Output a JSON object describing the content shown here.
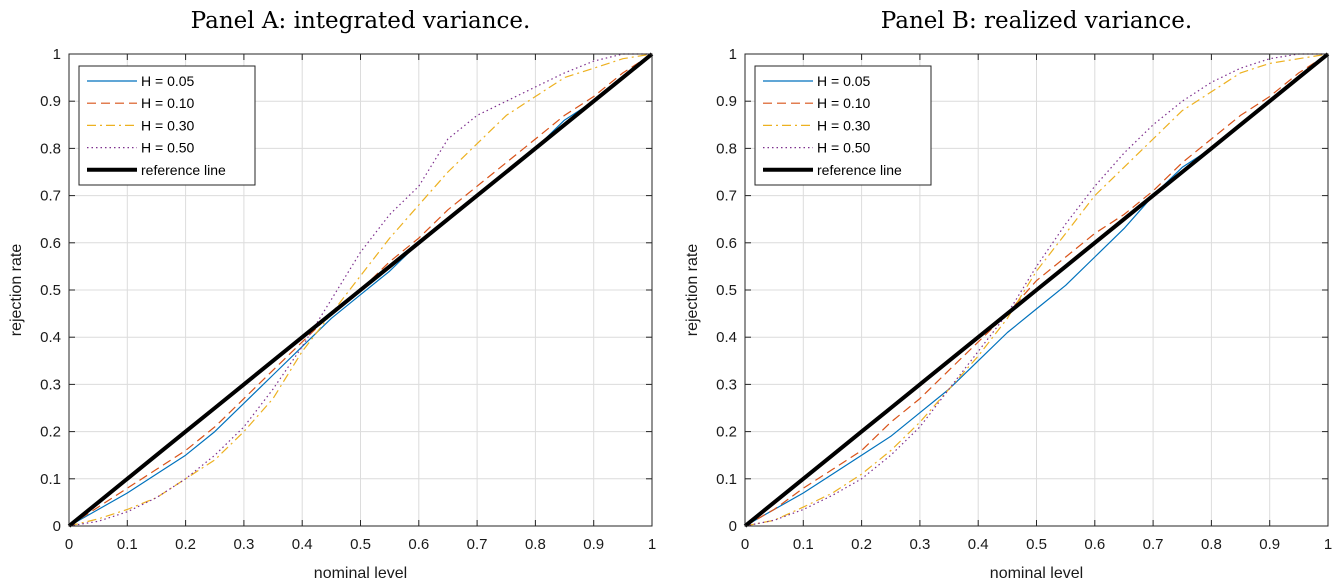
{
  "chart_data": [
    {
      "type": "line",
      "title": "Panel A: integrated variance.",
      "xlabel": "nominal level",
      "ylabel": "rejection rate",
      "xlim": [
        0,
        1
      ],
      "ylim": [
        0,
        1
      ],
      "x_ticks": [
        "0",
        "0.1",
        "0.2",
        "0.3",
        "0.4",
        "0.5",
        "0.6",
        "0.7",
        "0.8",
        "0.9",
        "1"
      ],
      "y_ticks": [
        "0",
        "0.1",
        "0.2",
        "0.3",
        "0.4",
        "0.5",
        "0.6",
        "0.7",
        "0.8",
        "0.9",
        "1"
      ],
      "grid": true,
      "legend": "top-left",
      "x": [
        0,
        0.05,
        0.1,
        0.15,
        0.2,
        0.25,
        0.3,
        0.35,
        0.4,
        0.45,
        0.5,
        0.55,
        0.6,
        0.65,
        0.7,
        0.75,
        0.8,
        0.85,
        0.9,
        0.95,
        1.0
      ],
      "series": [
        {
          "name": "H = 0.05",
          "color": "#0072BD",
          "dash": "solid",
          "values": [
            0,
            0.035,
            0.07,
            0.11,
            0.15,
            0.2,
            0.26,
            0.32,
            0.38,
            0.44,
            0.49,
            0.54,
            0.6,
            0.65,
            0.7,
            0.75,
            0.8,
            0.86,
            0.9,
            0.95,
            1.0
          ]
        },
        {
          "name": "H = 0.10",
          "color": "#D95319",
          "dash": "dashed",
          "values": [
            0,
            0.04,
            0.08,
            0.12,
            0.16,
            0.21,
            0.27,
            0.33,
            0.39,
            0.45,
            0.5,
            0.56,
            0.61,
            0.67,
            0.72,
            0.77,
            0.82,
            0.87,
            0.91,
            0.96,
            1.0
          ]
        },
        {
          "name": "H = 0.30",
          "color": "#EDB120",
          "dash": "dashdot",
          "values": [
            0,
            0.015,
            0.035,
            0.06,
            0.1,
            0.14,
            0.2,
            0.27,
            0.37,
            0.45,
            0.53,
            0.61,
            0.68,
            0.75,
            0.81,
            0.87,
            0.91,
            0.95,
            0.97,
            0.99,
            1.0
          ]
        },
        {
          "name": "H = 0.50",
          "color": "#7E2F8E",
          "dash": "dotted",
          "values": [
            0,
            0.01,
            0.03,
            0.06,
            0.1,
            0.15,
            0.21,
            0.29,
            0.38,
            0.48,
            0.58,
            0.66,
            0.72,
            0.82,
            0.87,
            0.9,
            0.93,
            0.96,
            0.985,
            1.0,
            1.0
          ]
        },
        {
          "name": "reference line",
          "color": "#000000",
          "dash": "solid",
          "width": 4,
          "values": [
            0,
            0.05,
            0.1,
            0.15,
            0.2,
            0.25,
            0.3,
            0.35,
            0.4,
            0.45,
            0.5,
            0.55,
            0.6,
            0.65,
            0.7,
            0.75,
            0.8,
            0.85,
            0.9,
            0.95,
            1.0
          ]
        }
      ]
    },
    {
      "type": "line",
      "title": "Panel B: realized variance.",
      "xlabel": "nominal level",
      "ylabel": "rejection rate",
      "xlim": [
        0,
        1
      ],
      "ylim": [
        0,
        1
      ],
      "x_ticks": [
        "0",
        "0.1",
        "0.2",
        "0.3",
        "0.4",
        "0.5",
        "0.6",
        "0.7",
        "0.8",
        "0.9",
        "1"
      ],
      "y_ticks": [
        "0",
        "0.1",
        "0.2",
        "0.3",
        "0.4",
        "0.5",
        "0.6",
        "0.7",
        "0.8",
        "0.9",
        "1"
      ],
      "grid": true,
      "legend": "top-left",
      "x": [
        0,
        0.05,
        0.1,
        0.15,
        0.2,
        0.25,
        0.3,
        0.35,
        0.4,
        0.45,
        0.5,
        0.55,
        0.6,
        0.65,
        0.7,
        0.75,
        0.8,
        0.85,
        0.9,
        0.95,
        1.0
      ],
      "series": [
        {
          "name": "H = 0.05",
          "color": "#0072BD",
          "dash": "solid",
          "values": [
            0,
            0.035,
            0.07,
            0.11,
            0.15,
            0.19,
            0.24,
            0.29,
            0.35,
            0.41,
            0.46,
            0.51,
            0.57,
            0.63,
            0.7,
            0.76,
            0.8,
            0.85,
            0.9,
            0.95,
            1.0
          ]
        },
        {
          "name": "H = 0.10",
          "color": "#D95319",
          "dash": "dashed",
          "values": [
            0,
            0.035,
            0.08,
            0.12,
            0.16,
            0.22,
            0.27,
            0.33,
            0.39,
            0.45,
            0.52,
            0.57,
            0.62,
            0.66,
            0.71,
            0.77,
            0.82,
            0.87,
            0.91,
            0.96,
            1.0
          ]
        },
        {
          "name": "H = 0.30",
          "color": "#EDB120",
          "dash": "dashdot",
          "values": [
            0,
            0.012,
            0.04,
            0.07,
            0.11,
            0.16,
            0.22,
            0.29,
            0.36,
            0.44,
            0.54,
            0.62,
            0.7,
            0.76,
            0.82,
            0.88,
            0.92,
            0.96,
            0.98,
            0.99,
            1.0
          ]
        },
        {
          "name": "H = 0.50",
          "color": "#7E2F8E",
          "dash": "dotted",
          "values": [
            0,
            0.012,
            0.035,
            0.065,
            0.1,
            0.15,
            0.21,
            0.29,
            0.37,
            0.45,
            0.55,
            0.64,
            0.72,
            0.79,
            0.85,
            0.9,
            0.94,
            0.97,
            0.99,
            1.0,
            1.0
          ]
        },
        {
          "name": "reference line",
          "color": "#000000",
          "dash": "solid",
          "width": 4,
          "values": [
            0,
            0.05,
            0.1,
            0.15,
            0.2,
            0.25,
            0.3,
            0.35,
            0.4,
            0.45,
            0.5,
            0.55,
            0.6,
            0.65,
            0.7,
            0.75,
            0.8,
            0.85,
            0.9,
            0.95,
            1.0
          ]
        }
      ]
    }
  ]
}
